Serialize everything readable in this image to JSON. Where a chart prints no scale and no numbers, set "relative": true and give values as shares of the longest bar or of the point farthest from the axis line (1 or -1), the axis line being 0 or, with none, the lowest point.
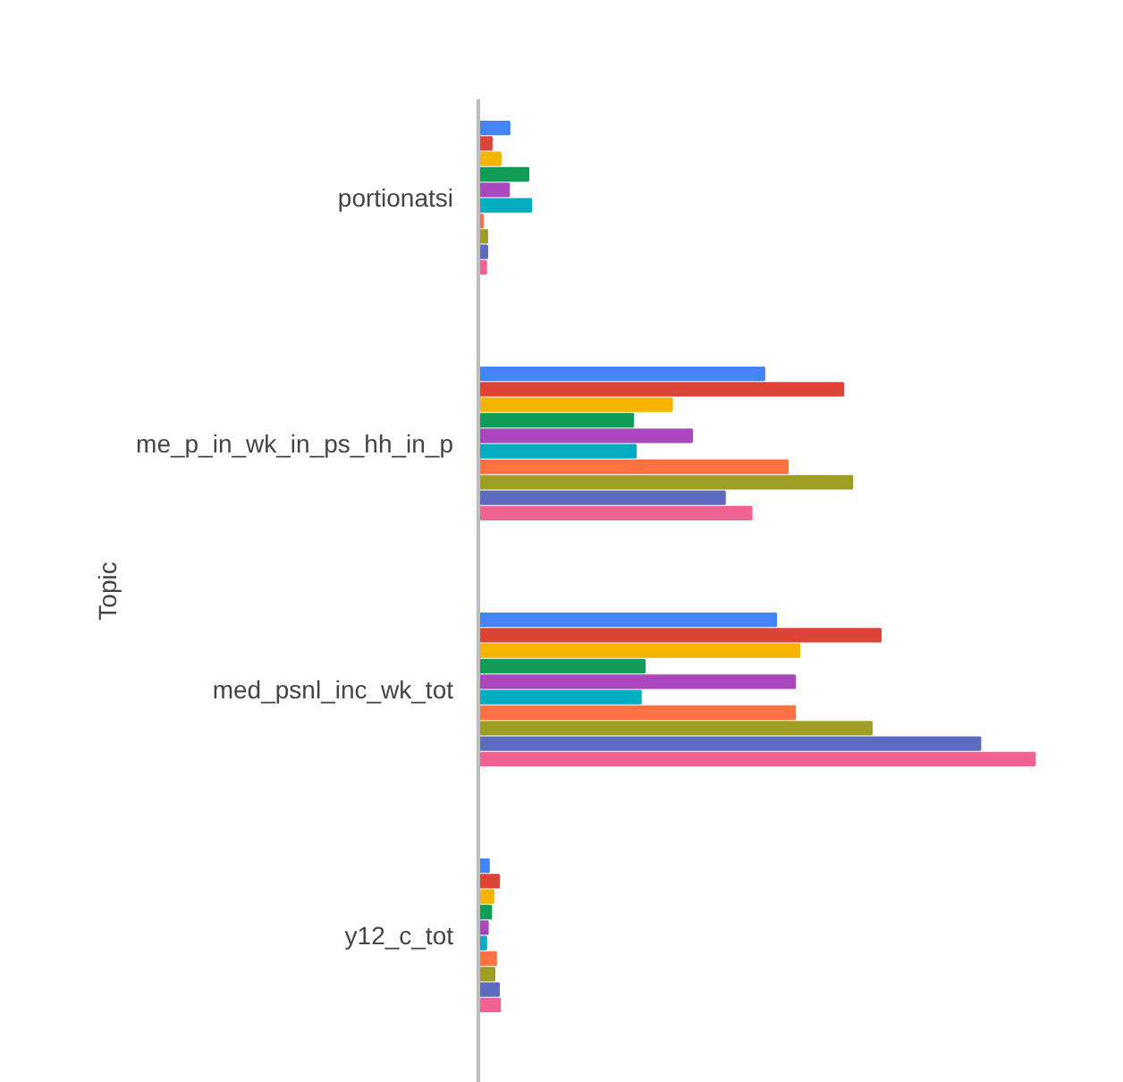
{
  "chart_data": {
    "type": "bar",
    "orientation": "horizontal",
    "relative": true,
    "ylabel": "Topic",
    "legend": false,
    "categories": [
      "portionatsi",
      "me_p_in_wk_in_ps_hh_in_p",
      "med_psnl_inc_wk_tot",
      "y12_c_tot"
    ],
    "series": [
      {
        "color": "#4285f4",
        "values": [
          0.056,
          0.514,
          0.535,
          0.019
        ]
      },
      {
        "color": "#db4437",
        "values": [
          0.024,
          0.656,
          0.723,
          0.037
        ]
      },
      {
        "color": "#f4b400",
        "values": [
          0.04,
          0.348,
          0.577,
          0.027
        ]
      },
      {
        "color": "#0f9d58",
        "values": [
          0.09,
          0.278,
          0.299,
          0.023
        ]
      },
      {
        "color": "#ab47bc",
        "values": [
          0.055,
          0.384,
          0.569,
          0.017
        ]
      },
      {
        "color": "#00acc1",
        "values": [
          0.095,
          0.283,
          0.292,
          0.014
        ]
      },
      {
        "color": "#ff7043",
        "values": [
          0.008,
          0.556,
          0.569,
          0.032
        ]
      },
      {
        "color": "#9e9d24",
        "values": [
          0.016,
          0.672,
          0.707,
          0.029
        ]
      },
      {
        "color": "#5c6bc0",
        "values": [
          0.016,
          0.443,
          0.902,
          0.037
        ]
      },
      {
        "color": "#f06292",
        "values": [
          0.014,
          0.491,
          1.0,
          0.039
        ]
      }
    ]
  }
}
